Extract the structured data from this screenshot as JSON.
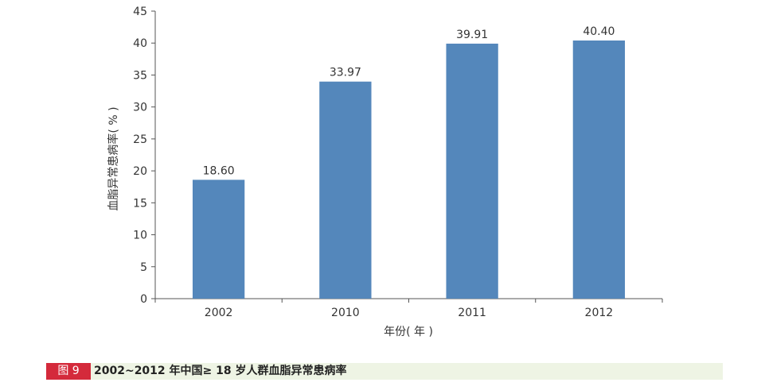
{
  "chart_data": {
    "type": "bar",
    "categories": [
      "2002",
      "2010",
      "2011",
      "2012"
    ],
    "values": [
      18.6,
      33.97,
      39.91,
      40.4
    ],
    "value_labels": [
      "18.60",
      "33.97",
      "39.91",
      "40.40"
    ],
    "xlabel": "年份( 年 )",
    "ylabel": "血脂异常患病率( % )",
    "ylim": [
      0,
      45
    ],
    "yticks": [
      "0",
      "5",
      "10",
      "15",
      "20",
      "25",
      "30",
      "35",
      "40",
      "45"
    ],
    "grid": false,
    "bar_color": "#5487bb"
  },
  "caption": {
    "tag": "图 9",
    "text": "2002~2012 年中国≥ 18 岁人群血脂异常患病率",
    "tag_color": "#d42a3b",
    "bar_color": "#eef4e4"
  }
}
